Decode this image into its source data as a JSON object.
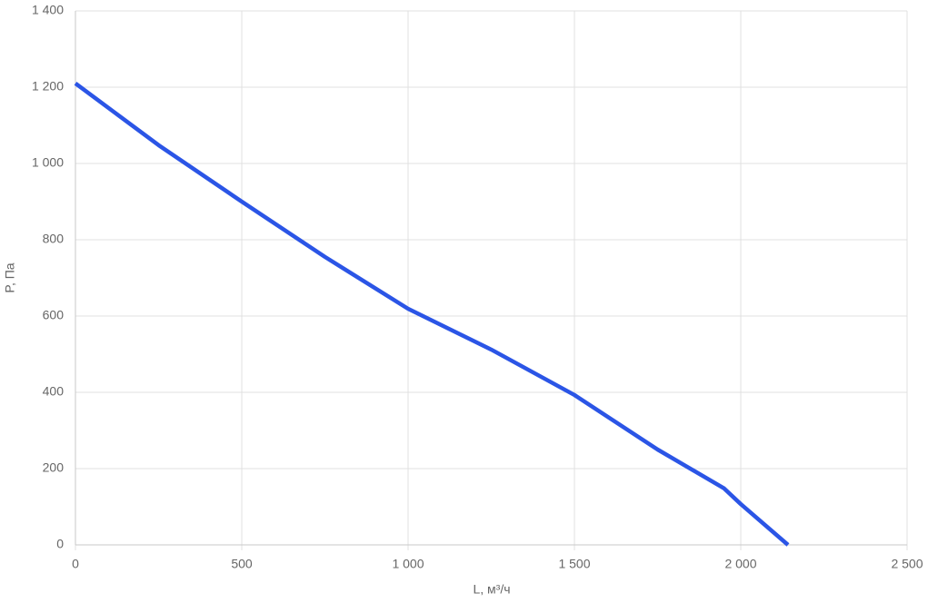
{
  "chart_data": {
    "type": "line",
    "x_label": "L, м³/ч",
    "y_label": "P, Па",
    "x": [
      0,
      250,
      500,
      750,
      1000,
      1250,
      1500,
      1750,
      1950,
      2000,
      2142
    ],
    "series": [
      {
        "name": "P",
        "color": "#2b55e6",
        "values": [
          1210,
          1048,
          900,
          755,
          619,
          512,
          393,
          250,
          148,
          107,
          0
        ]
      }
    ],
    "xlim": [
      0,
      2500
    ],
    "ylim": [
      0,
      1400
    ],
    "xticks": [
      0,
      500,
      {
        "value": 1000,
        "label": "1 000"
      },
      {
        "value": 1500,
        "label": "1 500"
      },
      {
        "value": 2000,
        "label": "2 000"
      },
      {
        "value": 2500,
        "label": "2 500"
      }
    ],
    "yticks": [
      0,
      200,
      400,
      600,
      800,
      {
        "value": 1000,
        "label": "1 000"
      },
      {
        "value": 1200,
        "label": "1 200"
      },
      {
        "value": 1400,
        "label": "1 400"
      }
    ],
    "grid": true
  }
}
